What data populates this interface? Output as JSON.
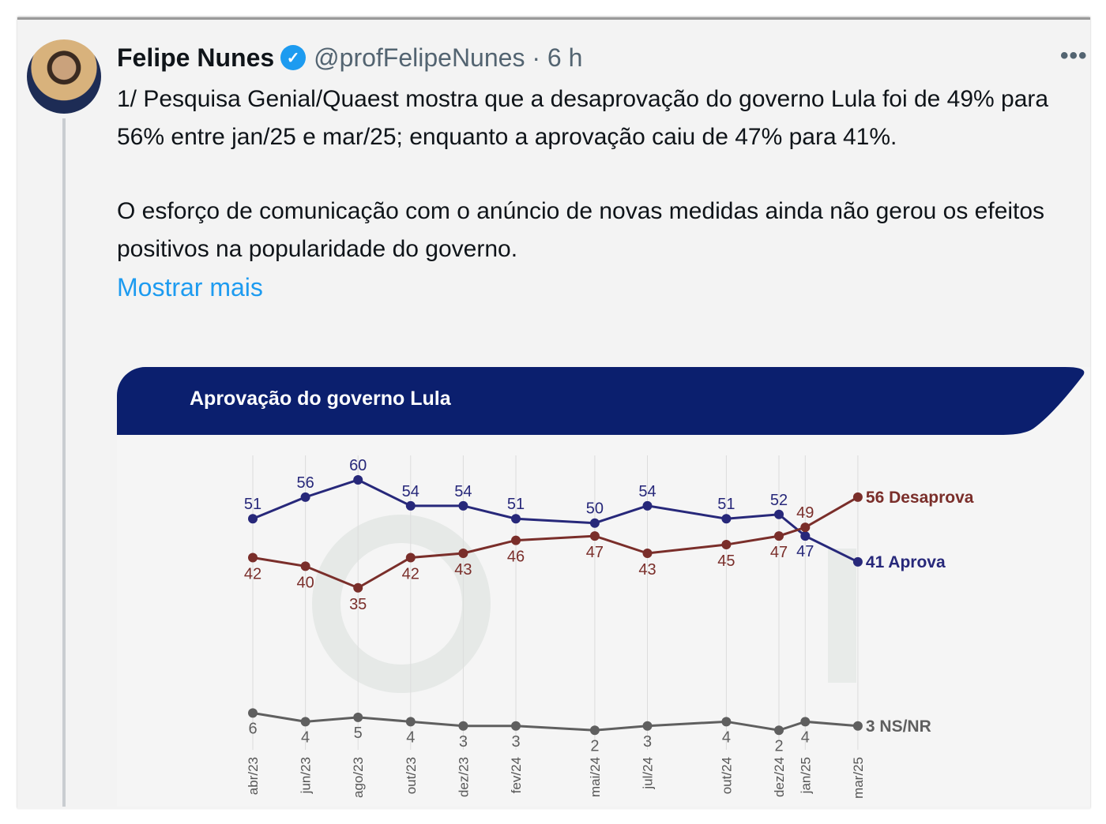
{
  "tweet": {
    "author_name": "Felipe Nunes",
    "verified_icon": "verified-badge-icon",
    "handle": "@profFelipeNunes",
    "separator": "·",
    "time": "6 h",
    "more_icon": "•••",
    "paragraphs": [
      "1/ Pesquisa Genial/Quaest mostra que a desaprovação do governo Lula foi de 49% para 56% entre jan/25 e mar/25; enquanto a aprovação caiu de 47% para 41%.",
      "O esforço de comunicação com o anúncio de novas medidas ainda não gerou os efeitos positivos na popularidade do governo."
    ],
    "show_more": "Mostrar mais"
  },
  "chart_data": {
    "type": "line",
    "title": "Aprovação do governo Lula",
    "watermark": "genial investimentos",
    "x": [
      "abr/23",
      "jun/23",
      "ago/23",
      "out/23",
      "dez/23",
      "fev/24",
      "mai/24",
      "jul/24",
      "out/24",
      "dez/24",
      "jan/25",
      "mar/25"
    ],
    "month_index": [
      0,
      2,
      4,
      6,
      8,
      10,
      13,
      15,
      18,
      20,
      21,
      23
    ],
    "series": [
      {
        "name": "Aprova",
        "end_label": "41 Aprova",
        "color": "#27287a",
        "values": [
          51,
          56,
          60,
          54,
          54,
          51,
          50,
          54,
          51,
          52,
          47,
          41
        ]
      },
      {
        "name": "Desaprova",
        "end_label": "56 Desaprova",
        "color": "#7a2e2a",
        "values": [
          42,
          40,
          35,
          42,
          43,
          46,
          47,
          43,
          45,
          47,
          49,
          56
        ]
      },
      {
        "name": "NS/NR",
        "end_label": "3 NS/NR",
        "color": "#5f5f5f",
        "values": [
          6,
          4,
          5,
          4,
          3,
          3,
          2,
          3,
          4,
          2,
          4,
          3
        ]
      }
    ],
    "ylim": [
      0,
      60
    ],
    "grid": "vertical",
    "legend": "end-of-line labels"
  },
  "colors": {
    "band": "#0b1f6e",
    "link": "#1d9bf0"
  }
}
